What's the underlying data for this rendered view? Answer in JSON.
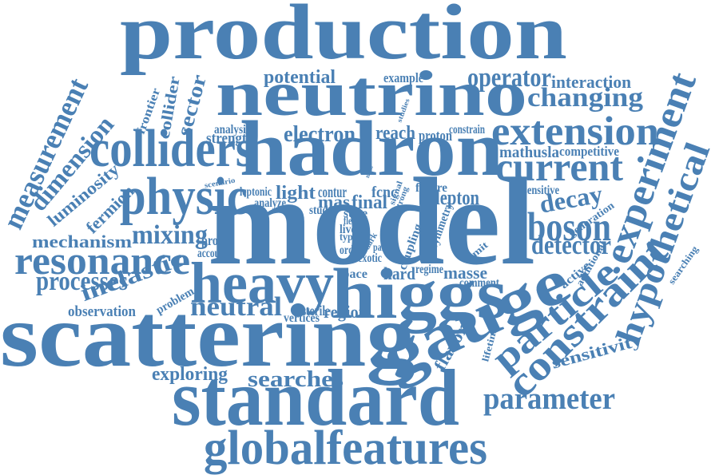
{
  "color": "#4a80b4",
  "background": "#ffffff",
  "words": [
    {
      "key": "production",
      "text": "production"
    },
    {
      "key": "neutrino",
      "text": "neutrino"
    },
    {
      "key": "hadron",
      "text": "hadron"
    },
    {
      "key": "model",
      "text": "model"
    },
    {
      "key": "scattering",
      "text": "scattering"
    },
    {
      "key": "gauge",
      "text": "gauge"
    },
    {
      "key": "standard",
      "text": "standard"
    },
    {
      "key": "globalfeatures",
      "text": "globalfeatures"
    },
    {
      "key": "higgs",
      "text": "higgs"
    },
    {
      "key": "heavy",
      "text": "heavy"
    },
    {
      "key": "colliders",
      "text": "colliders"
    },
    {
      "key": "physic",
      "text": "physic"
    },
    {
      "key": "resonance",
      "text": "resonance"
    },
    {
      "key": "extension",
      "text": "extension"
    },
    {
      "key": "current",
      "text": "current"
    },
    {
      "key": "changing",
      "text": "changing"
    },
    {
      "key": "experiment",
      "text": "experiment"
    },
    {
      "key": "hypothetical",
      "text": "hypothetical"
    },
    {
      "key": "constraint",
      "text": "constraint"
    },
    {
      "key": "particle",
      "text": "particle"
    },
    {
      "key": "boson",
      "text": "boson"
    },
    {
      "key": "decay",
      "text": "decay"
    },
    {
      "key": "detector",
      "text": "detector"
    },
    {
      "key": "parameter",
      "text": "parameter"
    },
    {
      "key": "searches",
      "text": "searches"
    },
    {
      "key": "exploring",
      "text": "exploring"
    },
    {
      "key": "sensitivity",
      "text": "sensitivity"
    },
    {
      "key": "neutral",
      "text": "neutral"
    },
    {
      "key": "inelastic",
      "text": "inelastic"
    },
    {
      "key": "processes",
      "text": "processes"
    },
    {
      "key": "mechanism",
      "text": "mechanism"
    },
    {
      "key": "mixing",
      "text": "mixing"
    },
    {
      "key": "measurement",
      "text": "measurement"
    },
    {
      "key": "dimension",
      "text": "dimension"
    },
    {
      "key": "luminosity",
      "text": "luminosity"
    },
    {
      "key": "fermion",
      "text": "fermion"
    },
    {
      "key": "collider",
      "text": "collider"
    },
    {
      "key": "sector",
      "text": "sector"
    },
    {
      "key": "frontier",
      "text": "frontier"
    },
    {
      "key": "potential",
      "text": "potential"
    },
    {
      "key": "operator",
      "text": "operator"
    },
    {
      "key": "interaction",
      "text": "interaction"
    },
    {
      "key": "example",
      "text": "example"
    },
    {
      "key": "electron",
      "text": "electron"
    },
    {
      "key": "reach",
      "text": "reach"
    },
    {
      "key": "proton",
      "text": "proton"
    },
    {
      "key": "constrain",
      "text": "constrain"
    },
    {
      "key": "studies",
      "text": "studies"
    },
    {
      "key": "analysis",
      "text": "analysis"
    },
    {
      "key": "strength",
      "text": "strength"
    },
    {
      "key": "mathusla",
      "text": "mathusla"
    },
    {
      "key": "competitive",
      "text": "competitive"
    },
    {
      "key": "scenario",
      "text": "scenario"
    },
    {
      "key": "leptonic",
      "text": "leptonic"
    },
    {
      "key": "light",
      "text": "light"
    },
    {
      "key": "contur",
      "text": "contur"
    },
    {
      "key": "mas",
      "text": "mas"
    },
    {
      "key": "fcnc",
      "text": "fcnc"
    },
    {
      "key": "final",
      "text": "final"
    },
    {
      "key": "signal",
      "text": "signal"
    },
    {
      "key": "strong",
      "text": "strong"
    },
    {
      "key": "future",
      "text": "future"
    },
    {
      "key": "lepton",
      "text": "lepton"
    },
    {
      "key": "sensitive",
      "text": "sensitive"
    },
    {
      "key": "generation",
      "text": "generation"
    },
    {
      "key": "matter",
      "text": "matter"
    },
    {
      "key": "analyze",
      "text": "analyze"
    },
    {
      "key": "study",
      "text": "study"
    },
    {
      "key": "state",
      "text": "state"
    },
    {
      "key": "probe",
      "text": "probe"
    },
    {
      "key": "account",
      "text": "account"
    },
    {
      "key": "lived",
      "text": "lived"
    },
    {
      "key": "type",
      "text": "type"
    },
    {
      "key": "order",
      "text": "order"
    },
    {
      "key": "exotic",
      "text": "exotic"
    },
    {
      "key": "coupling",
      "text": "coupling"
    },
    {
      "key": "regime",
      "text": "regime"
    },
    {
      "key": "symmetry",
      "text": "symmetry"
    },
    {
      "key": "limit",
      "text": "limit"
    },
    {
      "key": "space",
      "text": "space"
    },
    {
      "key": "hard",
      "text": "hard"
    },
    {
      "key": "masse",
      "text": "masse"
    },
    {
      "key": "comment",
      "text": "comment"
    },
    {
      "key": "active",
      "text": "active"
    },
    {
      "key": "additional",
      "text": "additional"
    },
    {
      "key": "searching",
      "text": "searching"
    },
    {
      "key": "observation",
      "text": "observation"
    },
    {
      "key": "problem",
      "text": "problem"
    },
    {
      "key": "vertices",
      "text": "vertices"
    },
    {
      "key": "sterile",
      "text": "sterile"
    },
    {
      "key": "region",
      "text": "region"
    },
    {
      "key": "flavor",
      "text": "flavor"
    },
    {
      "key": "lifetime",
      "text": "lifetime"
    },
    {
      "key": "flech",
      "text": "flech"
    },
    {
      "key": "dark",
      "text": "dark"
    },
    {
      "key": "pair",
      "text": "pair"
    }
  ]
}
